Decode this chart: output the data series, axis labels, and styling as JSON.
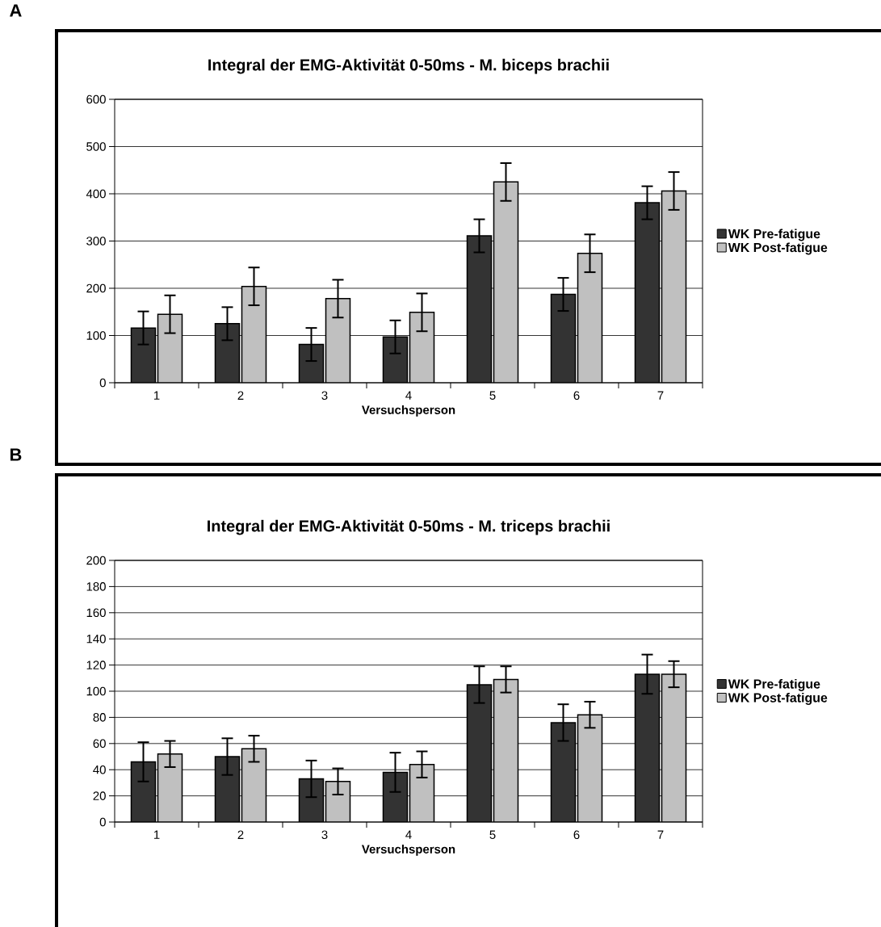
{
  "chart_data": [
    {
      "type": "bar",
      "title": "Integral der EMG-Aktivität 0-50ms - M. biceps brachii",
      "xlabel": "Versuchsperson",
      "annotations": [
        "A"
      ],
      "categories": [
        "1",
        "2",
        "3",
        "4",
        "5",
        "6",
        "7"
      ],
      "series": [
        {
          "name": "WK Pre-fatigue",
          "color": "#333333",
          "values": [
            116,
            125,
            81,
            97,
            311,
            187,
            381
          ],
          "errors": [
            35,
            35,
            35,
            35,
            35,
            35,
            35
          ]
        },
        {
          "name": "WK Post-fatigue",
          "color": "#c0c0c0",
          "values": [
            145,
            204,
            178,
            149,
            425,
            274,
            406
          ],
          "errors": [
            40,
            40,
            40,
            40,
            40,
            40,
            40
          ]
        }
      ],
      "ylim": [
        0,
        600
      ],
      "yticks": [
        0,
        100,
        200,
        300,
        400,
        500,
        600
      ],
      "grid": "y",
      "legend": "right"
    },
    {
      "type": "bar",
      "title": "Integral der EMG-Aktivität 0-50ms - M. triceps brachii",
      "xlabel": "Versuchsperson",
      "annotations": [
        "B"
      ],
      "categories": [
        "1",
        "2",
        "3",
        "4",
        "5",
        "6",
        "7"
      ],
      "series": [
        {
          "name": "WK Pre-fatigue",
          "color": "#333333",
          "values": [
            46,
            50,
            33,
            38,
            105,
            76,
            113
          ],
          "errors": [
            15,
            14,
            14,
            15,
            14,
            14,
            15
          ]
        },
        {
          "name": "WK Post-fatigue",
          "color": "#c0c0c0",
          "values": [
            52,
            56,
            31,
            44,
            109,
            82,
            113
          ],
          "errors": [
            10,
            10,
            10,
            10,
            10,
            10,
            10
          ]
        }
      ],
      "ylim": [
        0,
        200
      ],
      "yticks": [
        0,
        20,
        40,
        60,
        80,
        100,
        120,
        140,
        160,
        180,
        200
      ],
      "grid": "y",
      "legend": "right"
    }
  ]
}
